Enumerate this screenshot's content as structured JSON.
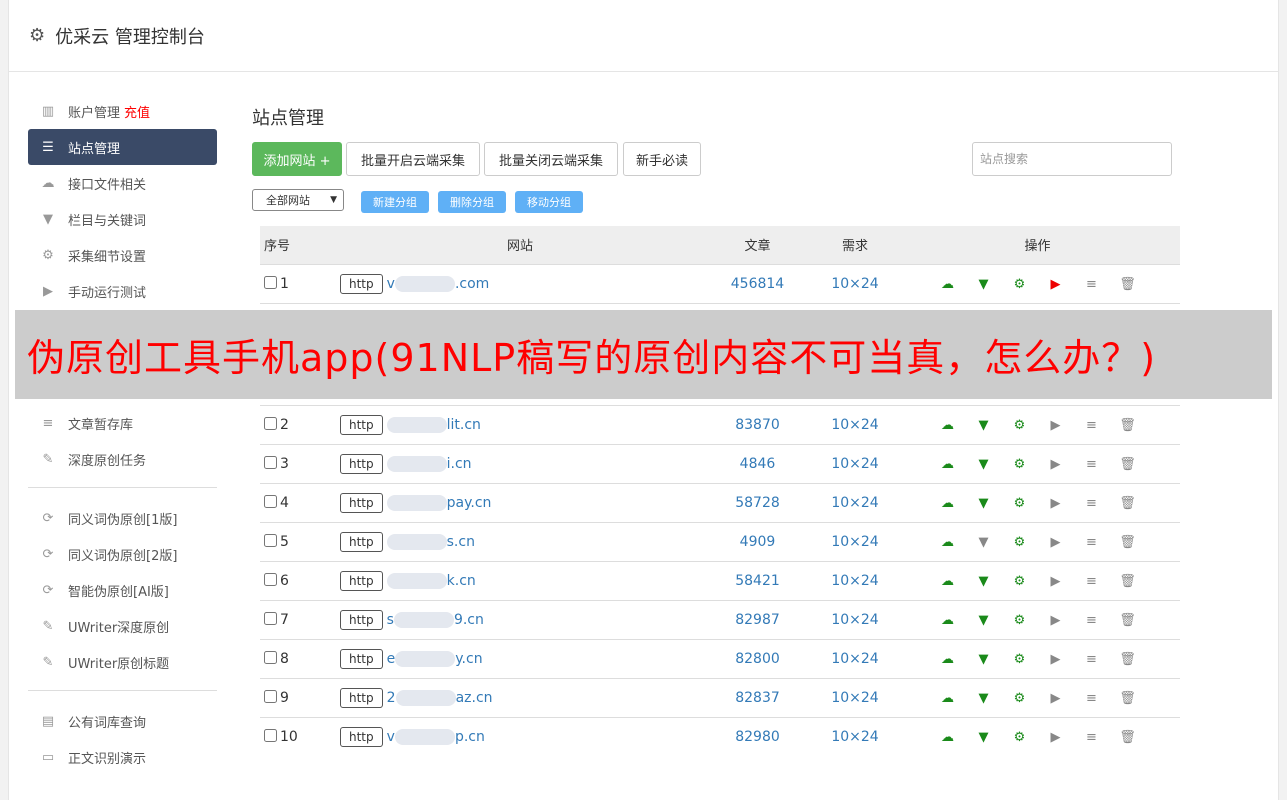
{
  "header": {
    "title": "优采云 管理控制台",
    "icon": "gear-icon"
  },
  "sidebar": {
    "items": [
      {
        "label": "账户管理",
        "extra": "充值",
        "icon": "bar-chart-icon"
      },
      {
        "label": "站点管理",
        "icon": "server-icon",
        "active": true
      },
      {
        "label": "接口文件相关",
        "icon": "cloud-upload-icon"
      },
      {
        "label": "栏目与关键词",
        "icon": "filter-icon"
      },
      {
        "label": "采集细节设置",
        "icon": "gears-icon"
      },
      {
        "label": "手动运行测试",
        "icon": "play-icon"
      },
      {
        "label": "文章暂存库",
        "icon": "database-icon"
      },
      {
        "label": "深度原创任务",
        "icon": "edit-icon"
      },
      {
        "label": "同义词伪原创[1版]",
        "icon": "refresh-icon"
      },
      {
        "label": "同义词伪原创[2版]",
        "icon": "refresh-icon"
      },
      {
        "label": "智能伪原创[AI版]",
        "icon": "refresh-icon"
      },
      {
        "label": "UWriter深度原创",
        "icon": "edit-icon"
      },
      {
        "label": "UWriter原创标题",
        "icon": "edit-icon"
      },
      {
        "label": "公有词库查询",
        "icon": "book-icon"
      },
      {
        "label": "正文识别演示",
        "icon": "monitor-icon"
      }
    ]
  },
  "main": {
    "title": "站点管理",
    "buttons": {
      "add": "添加网站 +",
      "batch_on": "批量开启云端采集",
      "batch_off": "批量关闭云端采集",
      "guide": "新手必读"
    },
    "search_placeholder": "站点搜索",
    "group_select": "全部网站",
    "group_buttons": {
      "new": "新建分组",
      "delete": "删除分组",
      "move": "移动分组"
    },
    "columns": [
      "序号",
      "网站",
      "文章",
      "需求",
      "操作"
    ],
    "rows": [
      {
        "no": "1",
        "proto": "http",
        "site_prefix": "v",
        "site": ".com",
        "articles": "456814",
        "demand": "10×24",
        "play": "red",
        "filter": "green"
      },
      {
        "no": "2",
        "proto": "http",
        "site_prefix": "",
        "site": "lit.cn",
        "articles": "83870",
        "demand": "10×24",
        "play": "gray",
        "filter": "green"
      },
      {
        "no": "3",
        "proto": "http",
        "site_prefix": "",
        "site": "i.cn",
        "articles": "4846",
        "demand": "10×24",
        "play": "gray",
        "filter": "green"
      },
      {
        "no": "4",
        "proto": "http",
        "site_prefix": "",
        "site": "pay.cn",
        "articles": "58728",
        "demand": "10×24",
        "play": "gray",
        "filter": "green"
      },
      {
        "no": "5",
        "proto": "http",
        "site_prefix": "",
        "site": "s.cn",
        "articles": "4909",
        "demand": "10×24",
        "play": "gray",
        "filter": "gray"
      },
      {
        "no": "6",
        "proto": "http",
        "site_prefix": "",
        "site": "k.cn",
        "articles": "58421",
        "demand": "10×24",
        "play": "gray",
        "filter": "green"
      },
      {
        "no": "7",
        "proto": "http",
        "site_prefix": "s",
        "site": "9.cn",
        "articles": "82987",
        "demand": "10×24",
        "play": "gray",
        "filter": "green"
      },
      {
        "no": "8",
        "proto": "http",
        "site_prefix": "e",
        "site": "y.cn",
        "articles": "82800",
        "demand": "10×24",
        "play": "gray",
        "filter": "green"
      },
      {
        "no": "9",
        "proto": "http",
        "site_prefix": "2",
        "site": "az.cn",
        "articles": "82837",
        "demand": "10×24",
        "play": "gray",
        "filter": "green"
      },
      {
        "no": "10",
        "proto": "http",
        "site_prefix": "v",
        "site": "p.cn",
        "articles": "82980",
        "demand": "10×24",
        "play": "gray",
        "filter": "green"
      }
    ]
  },
  "overlay": {
    "text": "伪原创工具手机app(91NLP稿写的原创内容不可当真，怎么办？)"
  },
  "colors": {
    "sidebar_active": "#3a4a67",
    "add_button": "#5cb85c",
    "group_button": "#5fb0f6",
    "link": "#337ab7",
    "overlay_text": "#ff0000"
  }
}
